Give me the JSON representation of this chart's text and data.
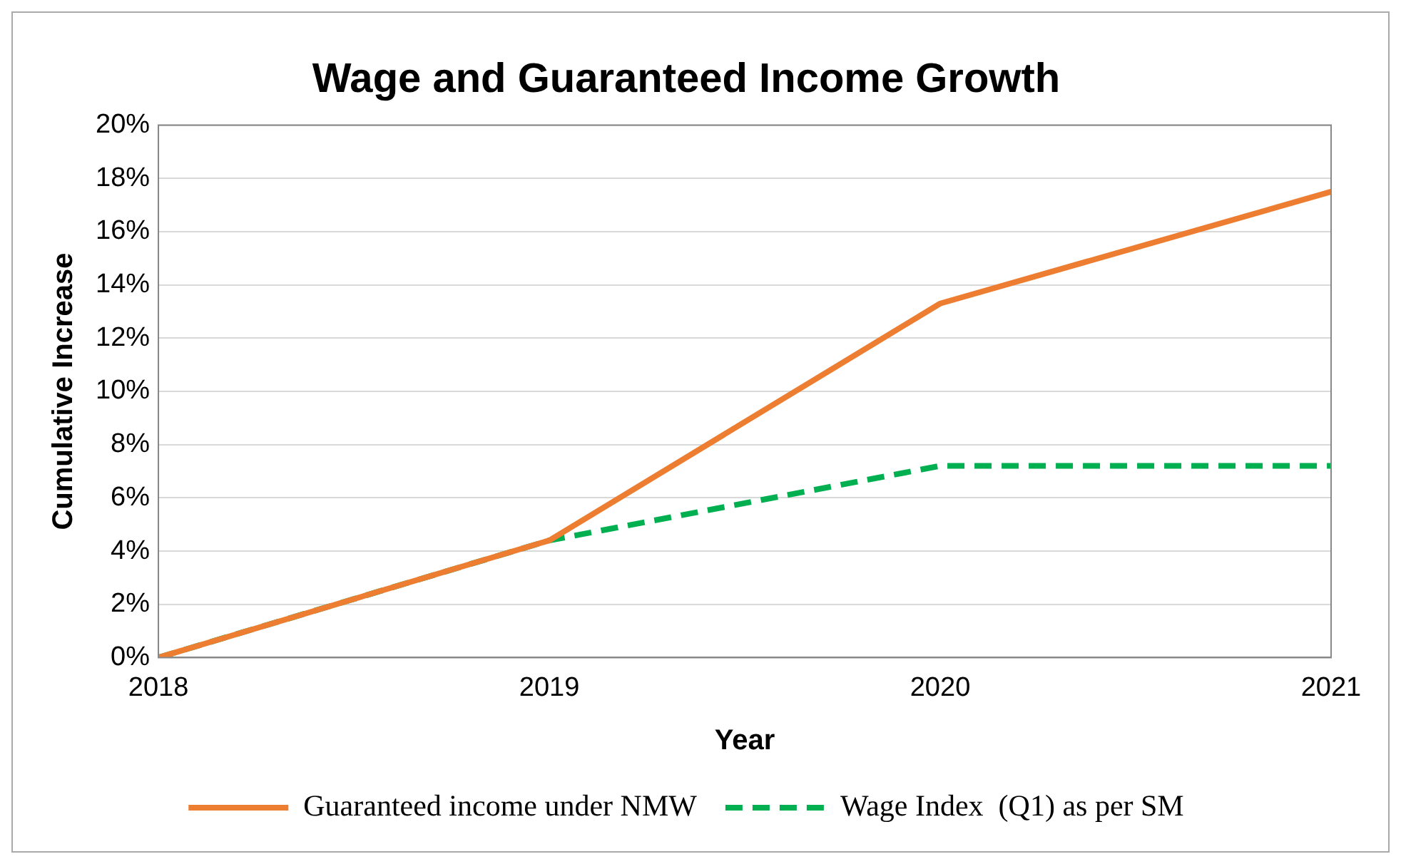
{
  "chart_data": {
    "type": "line",
    "title": "Wage and Guaranteed Income Growth",
    "xlabel": "Year",
    "ylabel": "Cumulative Increase",
    "categories": [
      "2018",
      "2019",
      "2020",
      "2021"
    ],
    "series": [
      {
        "name": "Guaranteed income under NMW",
        "color": "#ed7d31",
        "values": [
          0,
          4.4,
          13.3,
          17.5
        ],
        "line_style": "solid"
      },
      {
        "name": "Wage Index  (Q1) as per SM",
        "color": "#00b050",
        "values": [
          0,
          4.4,
          7.2,
          7.2
        ],
        "line_style": "dashed"
      }
    ],
    "ylim": [
      0,
      20
    ],
    "yticks": [
      {
        "value": 0,
        "label": "0%"
      },
      {
        "value": 2,
        "label": "2%"
      },
      {
        "value": 4,
        "label": "4%"
      },
      {
        "value": 6,
        "label": "6%"
      },
      {
        "value": 8,
        "label": "8%"
      },
      {
        "value": 10,
        "label": "10%"
      },
      {
        "value": 12,
        "label": "12%"
      },
      {
        "value": 14,
        "label": "14%"
      },
      {
        "value": 16,
        "label": "16%"
      },
      {
        "value": 18,
        "label": "18%"
      },
      {
        "value": 20,
        "label": "20%"
      }
    ],
    "grid": "y",
    "legend": "bottom",
    "marker": "none"
  }
}
